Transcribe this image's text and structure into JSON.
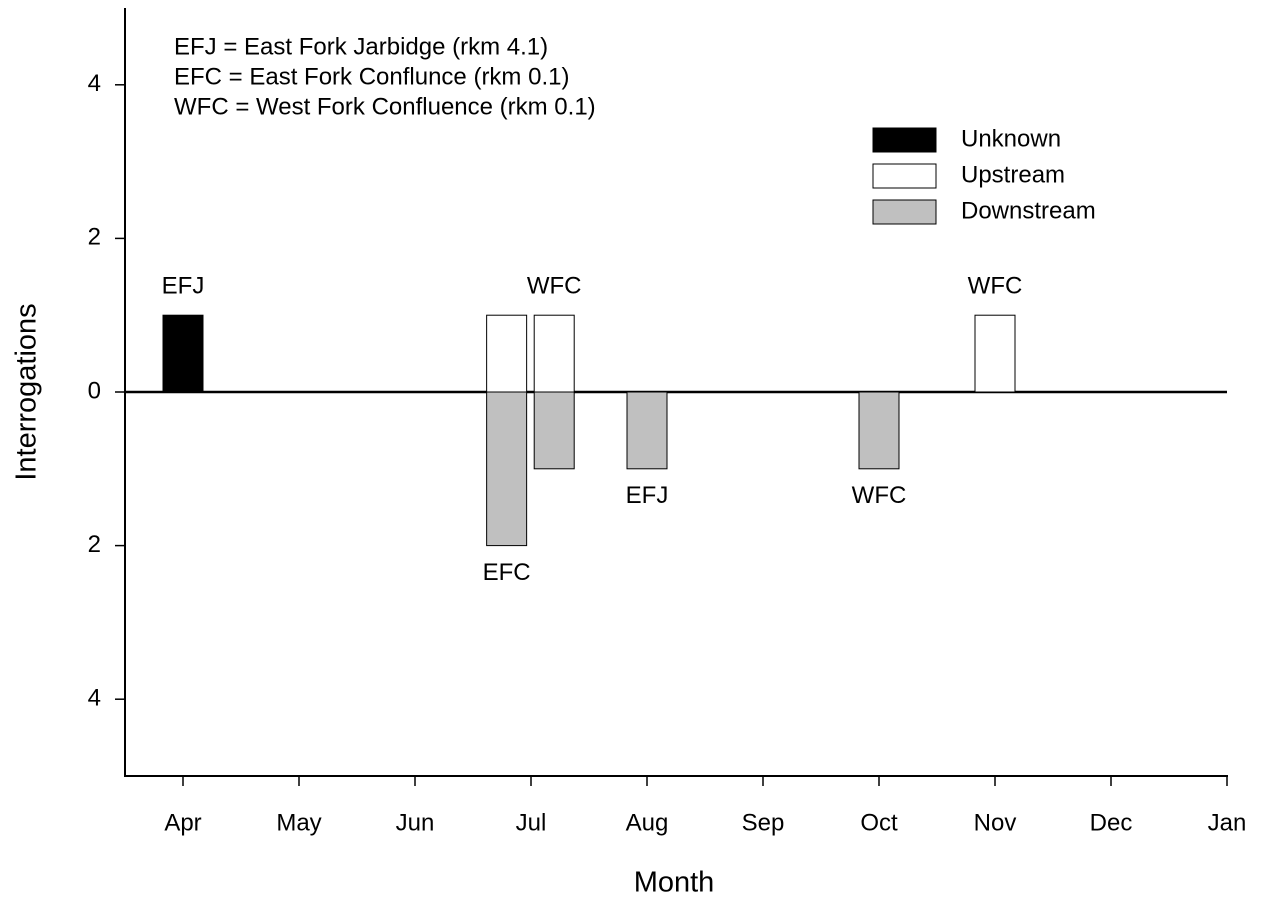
{
  "chart_data": {
    "type": "bar",
    "xlabel": "Month",
    "ylabel": "Interrogations",
    "notes": [
      "EFJ = East Fork Jarbidge (rkm 4.1)",
      "EFC = East Fork Conflunce (rkm 0.1)",
      "WFC = West Fork Confluence (rkm 0.1)"
    ],
    "xlim": [
      3.5,
      13
    ],
    "xticks": [
      {
        "value": 4,
        "label": "Apr"
      },
      {
        "value": 5,
        "label": "May"
      },
      {
        "value": 6,
        "label": "Jun"
      },
      {
        "value": 7,
        "label": "Jul"
      },
      {
        "value": 8,
        "label": "Aug"
      },
      {
        "value": 9,
        "label": "Sep"
      },
      {
        "value": 10,
        "label": "Oct"
      },
      {
        "value": 11,
        "label": "Nov"
      },
      {
        "value": 12,
        "label": "Dec"
      },
      {
        "value": 13,
        "label": "Jan"
      }
    ],
    "ylim": [
      -5,
      5
    ],
    "yticks": [
      4,
      2,
      0,
      {
        "value": -2,
        "label": "2"
      },
      {
        "value": -4,
        "label": "4"
      }
    ],
    "legend": "upper right",
    "series": [
      {
        "name": "Unknown",
        "color": "#000000",
        "x": [
          4
        ],
        "values": [
          1
        ],
        "point_labels": [
          "EFJ"
        ]
      },
      {
        "name": "Upstream",
        "color": "#ffffff",
        "x": [
          6.79,
          7.2,
          11
        ],
        "values": [
          1,
          1,
          1
        ],
        "point_labels": [
          null,
          "WFC",
          "WFC"
        ]
      },
      {
        "name": "Downstream",
        "color": "#c0c0c0",
        "x": [
          6.79,
          7.2,
          8,
          10
        ],
        "values": [
          -2,
          -1,
          -1,
          -1
        ],
        "point_labels": [
          "EFC",
          null,
          "EFJ",
          "WFC"
        ]
      }
    ]
  }
}
